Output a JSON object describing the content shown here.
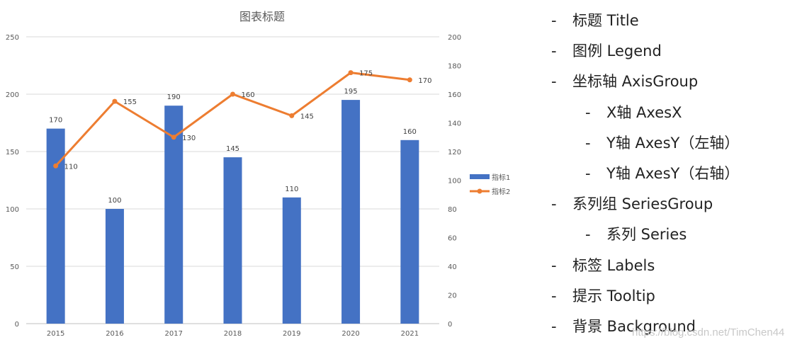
{
  "chart_data": {
    "type": "bar+line",
    "title": "图表标题",
    "categories": [
      "2015",
      "2016",
      "2017",
      "2018",
      "2019",
      "2020",
      "2021"
    ],
    "series": [
      {
        "name": "指标1",
        "type": "bar",
        "axis": "left",
        "color": "#4472c4",
        "values": [
          170,
          100,
          190,
          145,
          110,
          195,
          160
        ]
      },
      {
        "name": "指标2",
        "type": "line",
        "axis": "right",
        "color": "#ed7d31",
        "values": [
          110,
          155,
          130,
          160,
          145,
          175,
          170
        ]
      }
    ],
    "y_left": {
      "min": 0,
      "max": 250,
      "ticks": [
        0,
        50,
        100,
        150,
        200,
        250
      ]
    },
    "y_right": {
      "min": 0,
      "max": 200,
      "ticks": [
        0,
        20,
        40,
        60,
        80,
        100,
        120,
        140,
        160,
        180,
        200
      ]
    },
    "grid": true,
    "legend": "right",
    "data_labels": true
  },
  "notes": [
    {
      "dash": "-",
      "text": "标题 Title",
      "level": 0
    },
    {
      "dash": "-",
      "text": "图例 Legend",
      "level": 0
    },
    {
      "dash": "-",
      "text": "坐标轴 AxisGroup",
      "level": 0
    },
    {
      "dash": "-",
      "text": "X轴 AxesX",
      "level": 1
    },
    {
      "dash": "-",
      "text": "Y轴 AxesY（左轴）",
      "level": 1
    },
    {
      "dash": "-",
      "text": "Y轴 AxesY（右轴）",
      "level": 1
    },
    {
      "dash": "-",
      "text": "系列组 SeriesGroup",
      "level": 0
    },
    {
      "dash": "-",
      "text": "系列 Series",
      "level": 1
    },
    {
      "dash": "-",
      "text": "标签 Labels",
      "level": 0
    },
    {
      "dash": "-",
      "text": "提示 Tooltip",
      "level": 0
    },
    {
      "dash": "-",
      "text": "背景 Background",
      "level": 0
    }
  ],
  "watermark": "https://blog.csdn.net/TimChen44"
}
